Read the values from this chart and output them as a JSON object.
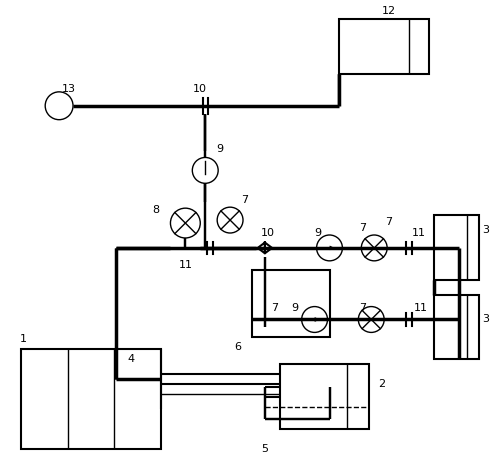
{
  "bg_color": "#ffffff",
  "line_color": "#000000",
  "fig_w": 4.92,
  "fig_h": 4.69,
  "lw_thick": 2.5,
  "lw_med": 1.5,
  "lw_thin": 1.0
}
